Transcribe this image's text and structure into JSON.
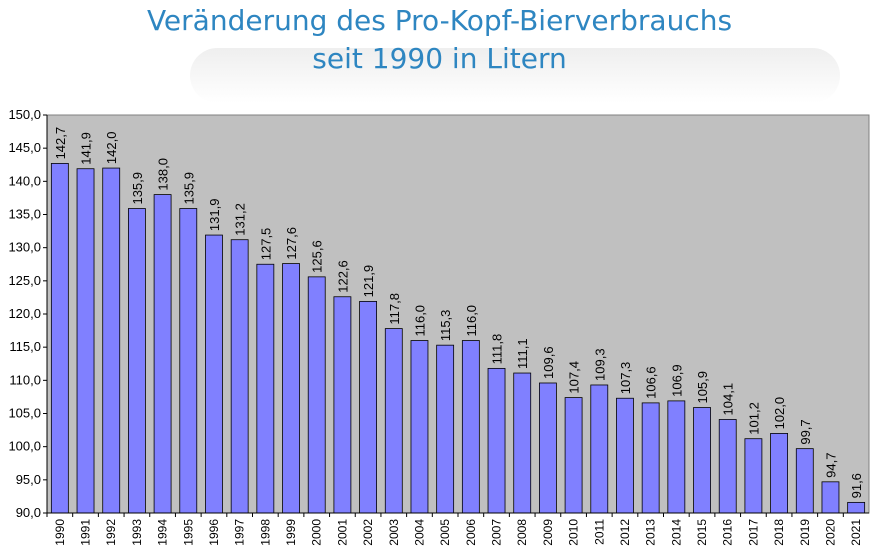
{
  "title": {
    "line1": "Veränderung des Pro-Kopf-Bierverbrauchs",
    "line2": "seit 1990  in Litern"
  },
  "colors": {
    "title": "#2e86c1",
    "plot_background": "#c0c0c0",
    "bar_fill": "#8080ff",
    "bar_stroke": "#000000"
  },
  "chart_data": {
    "type": "bar",
    "title": "Veränderung des Pro-Kopf-Bierverbrauchs seit 1990  in Litern",
    "xlabel": "",
    "ylabel": "",
    "ylim": [
      90,
      150
    ],
    "yticks": [
      "90,0",
      "95,0",
      "100,0",
      "105,0",
      "110,0",
      "115,0",
      "120,0",
      "125,0",
      "130,0",
      "135,0",
      "140,0",
      "145,0",
      "150,0"
    ],
    "grid": false,
    "legend": "none",
    "categories": [
      "1990",
      "1991",
      "1992",
      "1993",
      "1994",
      "1995",
      "1996",
      "1997",
      "1998",
      "1999",
      "2000",
      "2001",
      "2002",
      "2003",
      "2004",
      "2005",
      "2006",
      "2007",
      "2008",
      "2009",
      "2010",
      "2011",
      "2012",
      "2013",
      "2014",
      "2015",
      "2016",
      "2017",
      "2018",
      "2019",
      "2020",
      "2021"
    ],
    "values": [
      142.7,
      141.9,
      142.0,
      135.9,
      138.0,
      135.9,
      131.9,
      131.2,
      127.5,
      127.6,
      125.6,
      122.6,
      121.9,
      117.8,
      116.0,
      115.3,
      116.0,
      111.8,
      111.1,
      109.6,
      107.4,
      109.3,
      107.3,
      106.6,
      106.9,
      105.9,
      104.1,
      101.2,
      102.0,
      99.7,
      94.7,
      91.6
    ],
    "value_labels": [
      "142,7",
      "141,9",
      "142,0",
      "135,9",
      "138,0",
      "135,9",
      "131,9",
      "131,2",
      "127,5",
      "127,6",
      "125,6",
      "122,6",
      "121,9",
      "117,8",
      "116,0",
      "115,3",
      "116,0",
      "111,8",
      "111,1",
      "109,6",
      "107,4",
      "109,3",
      "107,3",
      "106,6",
      "106,9",
      "105,9",
      "104,1",
      "101,2",
      "102,0",
      "99,7",
      "94,7",
      "91,6"
    ]
  }
}
